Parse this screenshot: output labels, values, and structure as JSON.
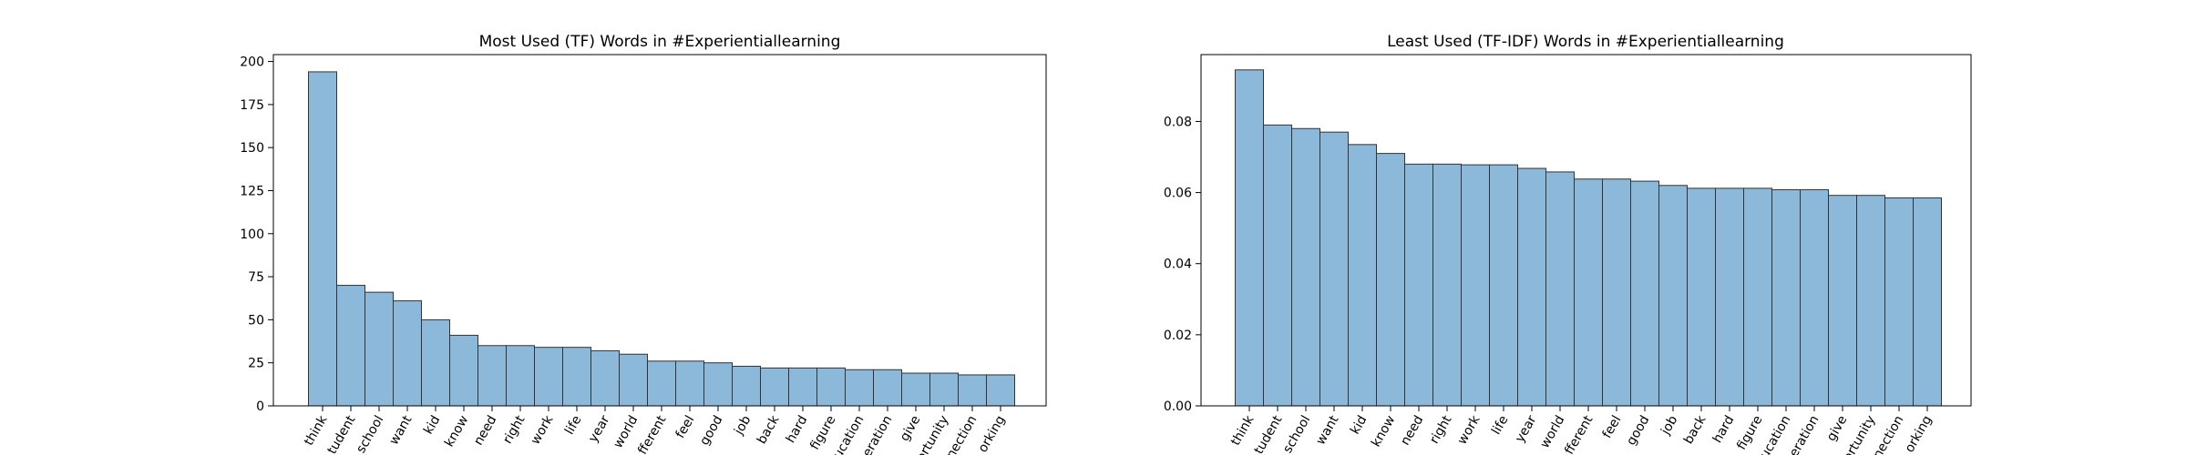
{
  "chart_data": [
    {
      "type": "bar",
      "title": "Most Used (TF) Words in #Experientiallearning",
      "xlabel": "",
      "ylabel": "",
      "ylim": [
        0,
        204
      ],
      "yticks": [
        0,
        25,
        50,
        75,
        100,
        125,
        150,
        175,
        200
      ],
      "ytick_labels": [
        "0",
        "25",
        "50",
        "75",
        "100",
        "125",
        "150",
        "175",
        "200"
      ],
      "categories": [
        "think",
        "tudent",
        "school",
        "want",
        "kid",
        "know",
        "need",
        "right",
        "work",
        "life",
        "year",
        "world",
        "fferent",
        "feel",
        "good",
        "job",
        "back",
        "hard",
        "figure",
        "ucation",
        "eration",
        "give",
        "ortunity",
        "nection",
        "orking"
      ],
      "values": [
        194,
        70,
        66,
        61,
        50,
        41,
        35,
        35,
        34,
        34,
        32,
        30,
        26,
        26,
        25,
        23,
        22,
        22,
        22,
        21,
        21,
        19,
        19,
        18,
        18
      ],
      "bar_color": "#8cb8d9",
      "edge_color": "#333333",
      "grid": false
    },
    {
      "type": "bar",
      "title": "Least Used (TF-IDF) Words in #Experientiallearning",
      "xlabel": "",
      "ylabel": "",
      "ylim": [
        0,
        0.0988
      ],
      "yticks": [
        0.0,
        0.02,
        0.04,
        0.06,
        0.08
      ],
      "ytick_labels": [
        "0.00",
        "0.02",
        "0.04",
        "0.06",
        "0.08"
      ],
      "categories": [
        "think",
        "tudent",
        "school",
        "want",
        "kid",
        "know",
        "need",
        "right",
        "work",
        "life",
        "year",
        "world",
        "fferent",
        "feel",
        "good",
        "job",
        "back",
        "hard",
        "figure",
        "ucation",
        "eration",
        "give",
        "ortunity",
        "nection",
        "orking"
      ],
      "values": [
        0.0945,
        0.079,
        0.078,
        0.077,
        0.0735,
        0.071,
        0.068,
        0.068,
        0.0678,
        0.0678,
        0.0668,
        0.0658,
        0.0638,
        0.0638,
        0.0632,
        0.062,
        0.0612,
        0.0612,
        0.0612,
        0.0608,
        0.0608,
        0.0592,
        0.0592,
        0.0585,
        0.0585
      ],
      "bar_color": "#8cb8d9",
      "edge_color": "#333333",
      "grid": false
    }
  ]
}
